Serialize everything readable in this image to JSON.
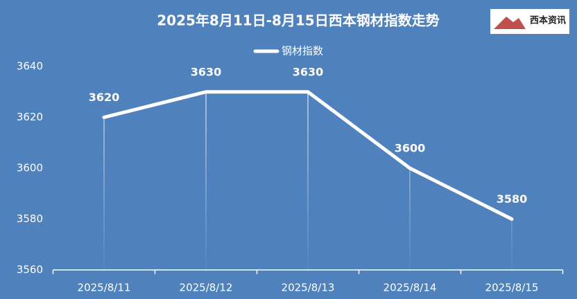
{
  "chart_data": {
    "type": "line",
    "title": "2025年8月11日-8月15日西本钢材指数走势",
    "logo_text": "西本资讯",
    "categories": [
      "2025/8/11",
      "2025/8/12",
      "2025/8/13",
      "2025/8/14",
      "2025/8/15"
    ],
    "series": [
      {
        "name": "钢材指数",
        "color": "#ffffff",
        "values": [
          3620,
          3630,
          3630,
          3600,
          3580
        ]
      }
    ],
    "ylim": [
      3560,
      3640
    ],
    "yticks": [
      3560,
      3580,
      3600,
      3620,
      3640
    ],
    "data_labels": true,
    "drop_lines": true,
    "legend": "top"
  }
}
